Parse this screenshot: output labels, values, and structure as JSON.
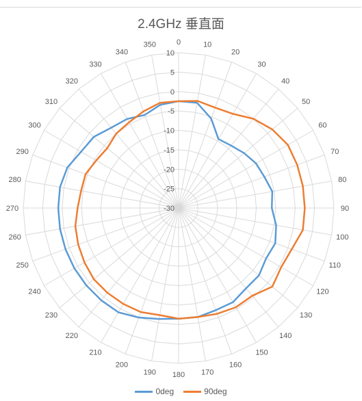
{
  "chart_data": {
    "type": "radar",
    "title": "2.4GHz 垂直面",
    "angle_labels": [
      "0",
      "10",
      "20",
      "30",
      "40",
      "50",
      "60",
      "70",
      "80",
      "90",
      "100",
      "110",
      "120",
      "130",
      "140",
      "150",
      "160",
      "170",
      "180",
      "190",
      "200",
      "210",
      "220",
      "230",
      "240",
      "250",
      "260",
      "270",
      "280",
      "290",
      "300",
      "310",
      "320",
      "330",
      "340",
      "350"
    ],
    "radial_ticks": [
      "10",
      "5",
      "0",
      "-5",
      "-10",
      "-15",
      "-20",
      "-25",
      "-30"
    ],
    "rlim": [
      -30,
      10
    ],
    "grid": true,
    "legend_position": "bottom",
    "series": [
      {
        "name": "0deg",
        "color": "#5b9bd5",
        "values": [
          -2.5,
          -2.5,
          -5.5,
          -9.5,
          -9,
          -8,
          -7,
          -6.5,
          -5.5,
          -6,
          -4.5,
          -3.5,
          -4,
          -3,
          -3,
          -2,
          -2,
          -1.5,
          -1.5,
          -1,
          0,
          1,
          1,
          1,
          1,
          1,
          1,
          1,
          1,
          0.5,
          -1,
          -1.5,
          -3,
          -3.5,
          -4.5,
          -3
        ]
      },
      {
        "name": "90deg",
        "color": "#ed7d31",
        "values": [
          -2.5,
          -2,
          -2.5,
          -2,
          0,
          1.5,
          2.5,
          2.5,
          2.5,
          2.5,
          2.5,
          1,
          0.5,
          1.5,
          -0.5,
          -0.5,
          -1,
          -1.5,
          -1.5,
          -2,
          -1.5,
          -1.5,
          -1.5,
          -1.5,
          -2,
          -2.5,
          -3,
          -4,
          -4.5,
          -4.5,
          -5.5,
          -6,
          -5,
          -4.5,
          -3.5,
          -2.5
        ]
      }
    ]
  }
}
